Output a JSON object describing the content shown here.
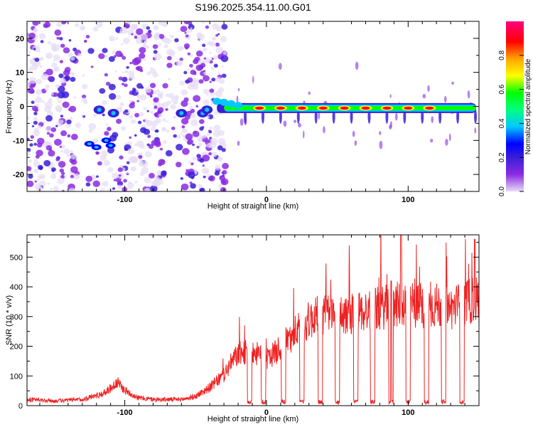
{
  "title": "S196.2025.354.11.00.G01",
  "chart_data": [
    {
      "type": "heatmap",
      "xlabel": "Height of straight line (km)",
      "ylabel": "Frequency (Hz)",
      "xlim": [
        -169,
        150
      ],
      "ylim": [
        -25,
        25
      ],
      "xticks": [
        -100,
        0,
        100
      ],
      "xtick_labels": [
        "-100",
        "0",
        "100"
      ],
      "yticks": [
        -20,
        -10,
        0,
        10,
        20
      ],
      "ytick_labels": [
        "-20",
        "-10",
        "0",
        "10",
        "20"
      ],
      "colorbar": {
        "label": "Normalized spectral amplitude",
        "range": [
          0,
          1
        ],
        "ticks": [
          0.0,
          0.2,
          0.4,
          0.6,
          0.8
        ],
        "tick_labels": [
          "0.0",
          "0.2",
          "0.4",
          "0.6",
          "0.8"
        ],
        "colormap": [
          "#e6dcf5",
          "#8a2be2",
          "#3a1fd8",
          "#0000ff",
          "#00c8ff",
          "#00ff7f",
          "#00ff00",
          "#ffff00",
          "#ffa500",
          "#ff0000",
          "#ff0080"
        ]
      },
      "feature_description": "Scattered weak noise at x<-30 km; signal line near 0 Hz for x>-30 km with red peaks",
      "signal_peaks_x": [
        -5,
        10,
        25,
        40,
        55,
        70,
        85,
        100,
        115
      ]
    },
    {
      "type": "line",
      "xlabel": "Height of straight line (km)",
      "ylabel": "SNR (10 * v/v)",
      "xlim": [
        -169,
        150
      ],
      "ylim": [
        0,
        575
      ],
      "xticks": [
        -100,
        0,
        100
      ],
      "xtick_labels": [
        "-100",
        "0",
        "100"
      ],
      "yticks": [
        0,
        100,
        200,
        300,
        400,
        500
      ],
      "ytick_labels": [
        "0",
        "100",
        "200",
        "300",
        "400",
        "500"
      ],
      "series": [
        {
          "name": "SNR",
          "color": "#ee2222",
          "x": [
            -169,
            -150,
            -130,
            -115,
            -105,
            -100,
            -90,
            -80,
            -60,
            -50,
            -40,
            -30,
            -25,
            -20,
            -10,
            0,
            10,
            20,
            30,
            40,
            50,
            60,
            70,
            80,
            90,
            100,
            110,
            120,
            130,
            140,
            148
          ],
          "y": [
            20,
            15,
            20,
            40,
            75,
            50,
            25,
            20,
            20,
            30,
            60,
            100,
            140,
            170,
            180,
            150,
            190,
            240,
            280,
            300,
            295,
            305,
            310,
            320,
            330,
            340,
            320,
            330,
            320,
            340,
            350
          ],
          "dropouts_x": [
            -12,
            -2,
            12,
            25,
            38,
            50,
            63,
            75,
            88,
            100,
            113,
            125,
            138
          ],
          "spikes": [
            [
              95,
              575
            ],
            [
              147,
              560
            ],
            [
              142,
              420
            ],
            [
              88,
              420
            ]
          ]
        }
      ]
    }
  ]
}
